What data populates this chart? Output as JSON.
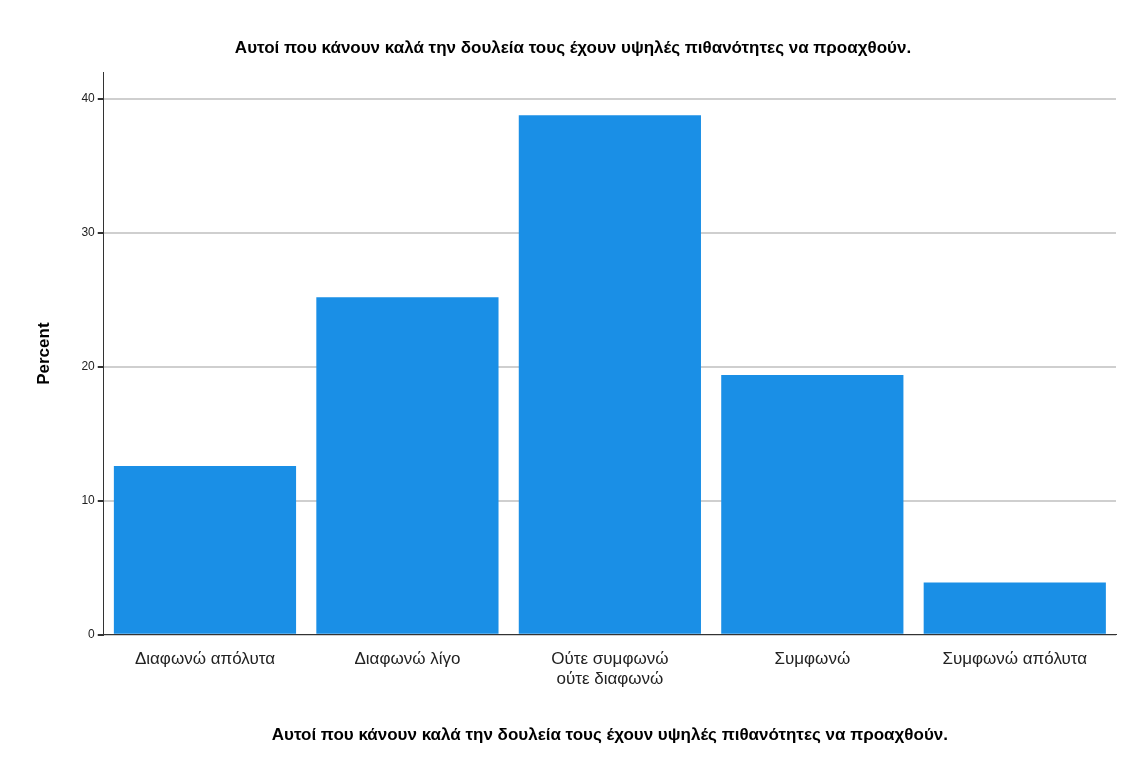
{
  "chart_data": {
    "type": "bar",
    "title": "Αυτοί που κάνουν καλά την δουλεία τους έχουν υψηλές πιθανότητες να προαχθούν.",
    "xlabel": "Αυτοί που κάνουν καλά την δουλεία τους έχουν υψηλές πιθανότητες να προαχθούν.",
    "ylabel": "Percent",
    "categories": [
      "Διαφωνώ απόλυτα",
      "Διαφωνώ λίγο",
      "Ούτε συμφωνώ ούτε διαφωνώ",
      "Συμφωνώ",
      "Συμφωνώ απόλυτα"
    ],
    "values": [
      12.6,
      25.2,
      38.8,
      19.4,
      3.9
    ],
    "color": "#1a8fe6",
    "ylim": [
      0,
      42
    ],
    "yticks": [
      0,
      10,
      20,
      30,
      40
    ],
    "grid": "y",
    "legend": false
  }
}
